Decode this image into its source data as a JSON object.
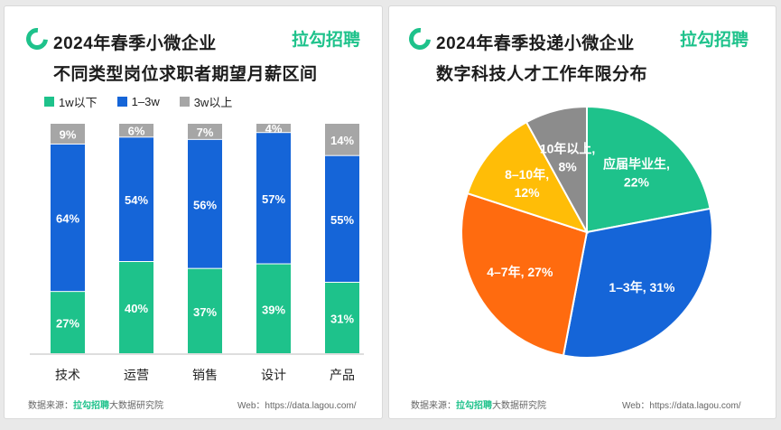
{
  "left": {
    "title_line1": "2024年春季小微企业",
    "title_line2": "不同类型岗位求职者期望月薪区间",
    "brand": "拉勾招聘",
    "footer_prefix": "数据来源：",
    "footer_brand": "拉勾招聘",
    "footer_suffix": "大数据研究院",
    "footer_web": "Web：https://data.lagou.com/"
  },
  "right": {
    "title_line1": "2024年春季投递小微企业",
    "title_line2": "数字科技人才工作年限分布",
    "brand": "拉勾招聘",
    "footer_prefix": "数据来源：",
    "footer_brand": "拉勾招聘",
    "footer_suffix": "大数据研究院",
    "footer_web": "Web：https://data.lagou.com/"
  },
  "colors": {
    "green": "#1ec28b",
    "blue": "#1565d8",
    "gray": "#a6a6a6",
    "orange": "#ff6b0f",
    "yellow": "#ffbd07",
    "darkgray": "#8c8c8c"
  },
  "chart_data": [
    {
      "type": "bar",
      "stacked": true,
      "categories": [
        "技术",
        "运营",
        "销售",
        "设计",
        "产品"
      ],
      "series": [
        {
          "name": "1w以下",
          "values": [
            27,
            40,
            37,
            39,
            31
          ],
          "labels": [
            "27%",
            "40%",
            "37%",
            "39%",
            "31%"
          ]
        },
        {
          "name": "1–3w",
          "values": [
            64,
            54,
            56,
            57,
            55
          ],
          "labels": [
            "64%",
            "54%",
            "56%",
            "57%",
            "55%"
          ]
        },
        {
          "name": "3w以上",
          "values": [
            9,
            6,
            7,
            4,
            14
          ],
          "labels": [
            "9%",
            "6%",
            "7%",
            "4%",
            "14%"
          ]
        }
      ],
      "ylim": [
        0,
        100
      ]
    },
    {
      "type": "pie",
      "slices": [
        {
          "label": "应届毕业生",
          "value": 22,
          "text": "应届毕业生,",
          "pct": "22%"
        },
        {
          "label": "1–3年",
          "value": 31,
          "text": "1–3年, 31%",
          "pct": ""
        },
        {
          "label": "4–7年",
          "value": 27,
          "text": "4–7年, 27%",
          "pct": ""
        },
        {
          "label": "8–10年",
          "value": 12,
          "text": "8–10年,",
          "pct": "12%"
        },
        {
          "label": "10年以上",
          "value": 8,
          "text": "10年以上,",
          "pct": "8%"
        }
      ]
    }
  ]
}
